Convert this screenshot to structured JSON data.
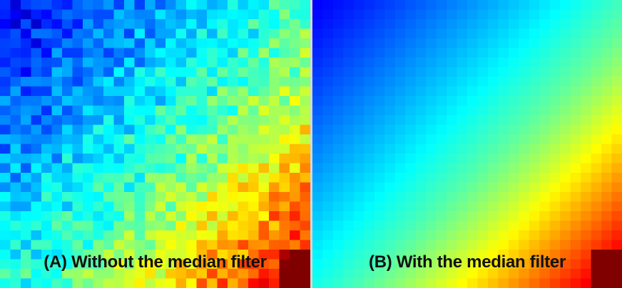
{
  "figure": {
    "panels": [
      {
        "id": "a",
        "caption": "(A) Without the median filter",
        "noisy": true
      },
      {
        "id": "b",
        "caption": "(B) With the median filter",
        "noisy": false
      }
    ],
    "colormap": "jet",
    "divider_color": "#d6d6d6"
  },
  "chart_data": {
    "type": "heatmap",
    "colormap": "jet",
    "grid_rows": 30,
    "grid_cols": 30,
    "value_range": [
      0,
      1
    ],
    "description_of_values": "value increases from top-left (low, dark blue) toward bottom-right (high, yellow/red)",
    "panels": [
      {
        "caption": "(A) Without the median filter",
        "noise": "checkered pixel noise"
      },
      {
        "caption": "(B) With the median filter",
        "noise": "smoothed"
      }
    ]
  }
}
